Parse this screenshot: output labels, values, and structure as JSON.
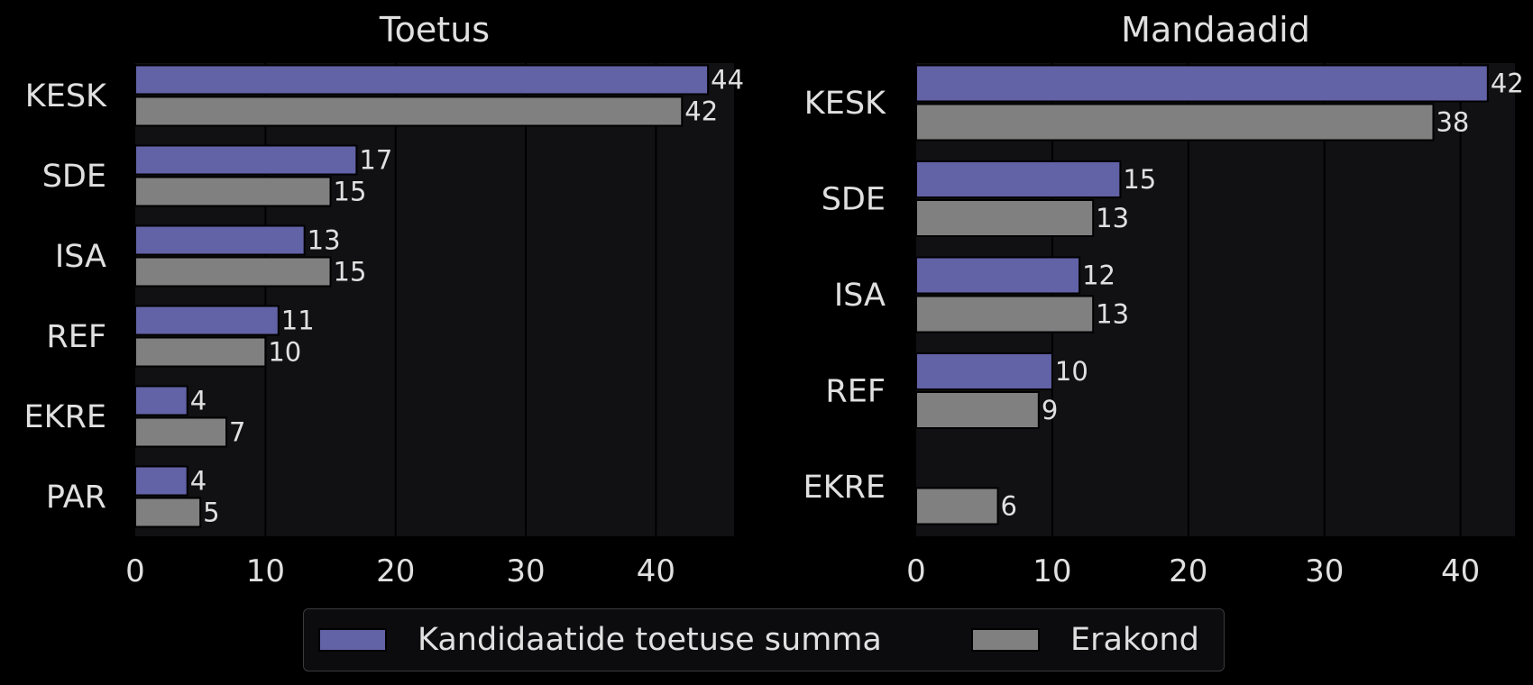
{
  "colors": {
    "background": "#000000",
    "panel": "#111114",
    "grid": "#000000",
    "text": "#e0e0e0",
    "candidate": "#6262a6",
    "party": "#808080"
  },
  "legend": {
    "placement": "bottom-center",
    "items": [
      {
        "label": "Kandidaatide toetuse summa",
        "color": "#6262a6"
      },
      {
        "label": "Erakond",
        "color": "#808080"
      }
    ]
  },
  "chart_data": [
    {
      "type": "bar",
      "orientation": "horizontal",
      "title": "Toetus",
      "categories": [
        "KESK",
        "SDE",
        "ISA",
        "REF",
        "EKRE",
        "PAR"
      ],
      "series": [
        {
          "name": "Kandidaatide toetuse summa",
          "values": [
            44,
            17,
            13,
            11,
            4,
            4
          ]
        },
        {
          "name": "Erakond",
          "values": [
            42,
            15,
            15,
            10,
            7,
            5
          ]
        }
      ],
      "xlim": [
        0,
        46
      ],
      "xticks": [
        0,
        10,
        20,
        30,
        40
      ],
      "grid": "vertical"
    },
    {
      "type": "bar",
      "orientation": "horizontal",
      "title": "Mandaadid",
      "categories": [
        "KESK",
        "SDE",
        "ISA",
        "REF",
        "EKRE"
      ],
      "series": [
        {
          "name": "Kandidaatide toetuse summa",
          "values": [
            42,
            15,
            12,
            10,
            null
          ]
        },
        {
          "name": "Erakond",
          "values": [
            38,
            13,
            13,
            9,
            6
          ]
        }
      ],
      "xlim": [
        0,
        44
      ],
      "xticks": [
        0,
        10,
        20,
        30,
        40
      ],
      "grid": "vertical"
    }
  ]
}
